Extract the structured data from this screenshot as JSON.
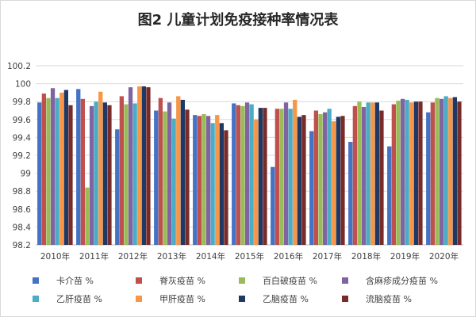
{
  "chart_data": {
    "type": "bar",
    "title": "图2  儿童计划免疫接种率情况表",
    "categories": [
      "2010年",
      "2011年",
      "2012年",
      "2013年",
      "2014年",
      "2015年",
      "2016年",
      "2017年",
      "2018年",
      "2019年",
      "2020年"
    ],
    "ylim": [
      98.2,
      100.2
    ],
    "yticks": [
      "98.2",
      "98.4",
      "98.6",
      "98.8",
      "99",
      "99.2",
      "99.4",
      "99.6",
      "99.8",
      "100",
      "100.2"
    ],
    "grid": true,
    "legend_position": "bottom",
    "series": [
      {
        "name": "卡介苗 %",
        "color": "#4472c4",
        "values": [
          99.79,
          99.94,
          99.49,
          99.7,
          99.65,
          99.78,
          99.07,
          99.47,
          99.35,
          99.3,
          99.68
        ]
      },
      {
        "name": "脊灰疫苗 %",
        "color": "#c0504d",
        "values": [
          99.89,
          99.83,
          99.86,
          99.84,
          99.64,
          99.76,
          99.72,
          99.7,
          99.75,
          99.77,
          99.79
        ]
      },
      {
        "name": "百白破疫苗 %",
        "color": "#9bbb59",
        "values": [
          99.84,
          98.84,
          99.77,
          99.69,
          99.66,
          99.75,
          99.72,
          99.66,
          99.8,
          99.81,
          99.84
        ]
      },
      {
        "name": "含麻疹成分疫苗 %",
        "color": "#8064a2",
        "values": [
          99.95,
          99.75,
          99.96,
          99.79,
          99.64,
          99.79,
          99.79,
          99.68,
          99.74,
          99.83,
          99.83
        ]
      },
      {
        "name": "乙肝疫苗 %",
        "color": "#4bacc6",
        "values": [
          99.84,
          99.8,
          99.78,
          99.61,
          99.56,
          99.77,
          99.72,
          99.72,
          99.79,
          99.82,
          99.86
        ]
      },
      {
        "name": "甲肝疫苗 %",
        "color": "#f79646",
        "values": [
          99.9,
          99.91,
          99.97,
          99.86,
          99.65,
          99.6,
          99.82,
          99.58,
          99.79,
          99.79,
          99.84
        ]
      },
      {
        "name": "乙脑疫苗 %",
        "color": "#1f3864",
        "values": [
          99.93,
          99.79,
          99.97,
          99.82,
          99.56,
          99.73,
          99.63,
          99.63,
          99.79,
          99.8,
          99.85
        ]
      },
      {
        "name": "流脑疫苗 %",
        "color": "#772c2a",
        "values": [
          99.76,
          99.76,
          99.96,
          99.71,
          99.48,
          99.73,
          99.65,
          99.64,
          99.7,
          99.8,
          99.8
        ]
      }
    ]
  }
}
